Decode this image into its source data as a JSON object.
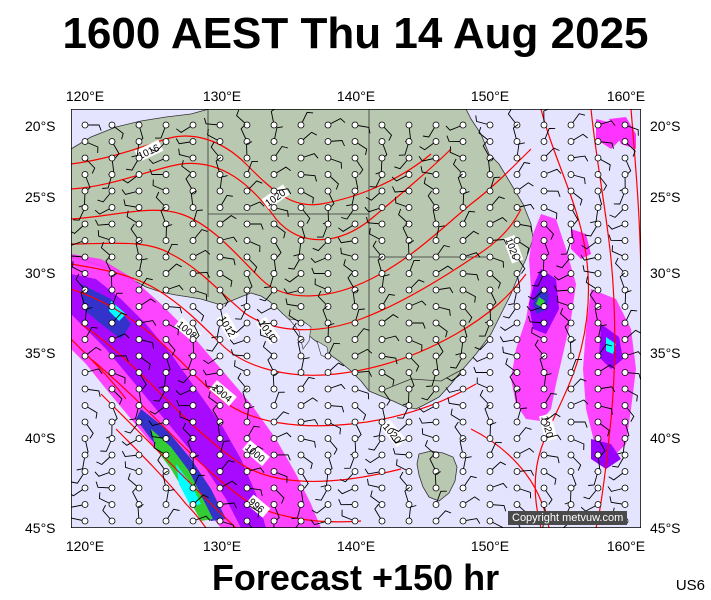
{
  "title": "1600 AEST Thu 14 Aug 2025",
  "footer": "Forecast +150 hr",
  "code": "US6",
  "copyright": "Copyright metvuw.com",
  "lon_labels": [
    "120°E",
    "130°E",
    "140°E",
    "150°E",
    "160°E"
  ],
  "lat_labels": [
    "20°S",
    "25°S",
    "30°S",
    "35°S",
    "40°S",
    "45°S"
  ],
  "isobar_labels": [
    "1016",
    "1020",
    "1020",
    "1020",
    "1020",
    "1012",
    "1010",
    "1008",
    "1004",
    "1000",
    "996"
  ],
  "colors": {
    "sea": "#e4e4ff",
    "land": "#b9c8b0",
    "isobar": "#ff0000",
    "rain_light": "#ff33ff",
    "rain_mid": "#9900ff",
    "rain_heavy": "#3333cc",
    "rain_cyan": "#00ffff",
    "rain_green": "#33cc33"
  }
}
